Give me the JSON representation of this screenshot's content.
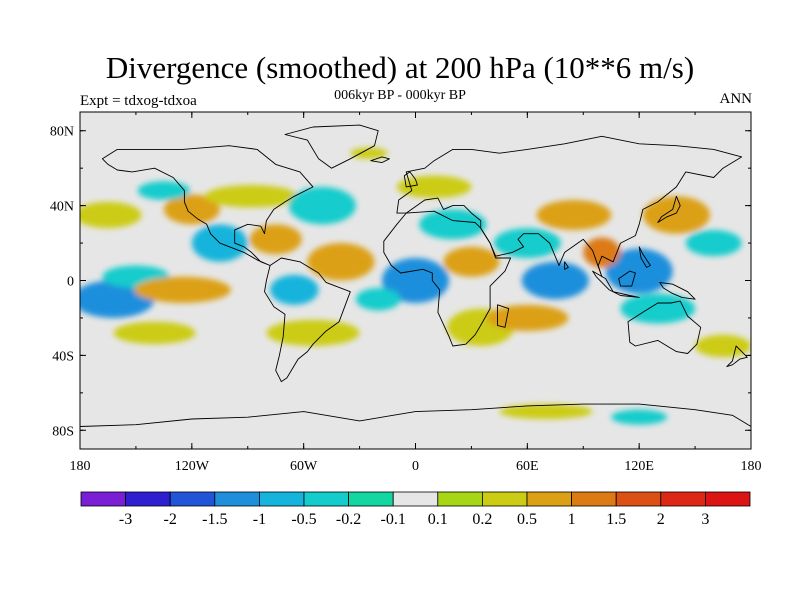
{
  "title": "Divergence (smoothed) at 200 hPa (10**6 m/s)",
  "subtitle": "006kyr BP - 000kyr BP",
  "experiment": "Expt = tdxog-tdxoa",
  "season": "ANN",
  "map": {
    "projection": "cylindrical equidistant",
    "lon_range": [
      -180,
      180
    ],
    "lat_range": [
      -90,
      90
    ],
    "background_color": "#e6e6e6",
    "lat_ticks": [
      {
        "value": 80,
        "label": "80N"
      },
      {
        "value": 40,
        "label": "40N"
      },
      {
        "value": 0,
        "label": "0"
      },
      {
        "value": -40,
        "label": "40S"
      },
      {
        "value": -80,
        "label": "80S"
      }
    ],
    "lon_ticks": [
      {
        "value": -180,
        "label": "180"
      },
      {
        "value": -120,
        "label": "120W"
      },
      {
        "value": -60,
        "label": "60W"
      },
      {
        "value": 0,
        "label": "0"
      },
      {
        "value": 60,
        "label": "60E"
      },
      {
        "value": 120,
        "label": "120E"
      },
      {
        "value": 180,
        "label": "180"
      }
    ]
  },
  "colorbar": {
    "labels": [
      "-3",
      "-2",
      "-1.5",
      "-1",
      "-0.5",
      "-0.2",
      "-0.1",
      "0.1",
      "0.2",
      "0.5",
      "1",
      "1.5",
      "2",
      "3"
    ],
    "colors": [
      "#7a1fd6",
      "#2e1fd1",
      "#1f55d6",
      "#1f8fdc",
      "#14b4dc",
      "#14cccc",
      "#14d6a0",
      "#e6e6e6",
      "#a6d614",
      "#cccc14",
      "#dca014",
      "#dc7a14",
      "#dc5014",
      "#dc2814",
      "#dc1414"
    ]
  },
  "anomalies": [
    {
      "lon": -162,
      "lat": -10,
      "rx": 22,
      "ry": 10,
      "level": 3
    },
    {
      "lon": -150,
      "lat": 2,
      "rx": 18,
      "ry": 6,
      "level": 5
    },
    {
      "lon": -125,
      "lat": -5,
      "rx": 26,
      "ry": 7,
      "level": 10
    },
    {
      "lon": -165,
      "lat": 35,
      "rx": 18,
      "ry": 7,
      "level": 9
    },
    {
      "lon": -120,
      "lat": 38,
      "rx": 15,
      "ry": 8,
      "level": 10
    },
    {
      "lon": -135,
      "lat": 48,
      "rx": 14,
      "ry": 5,
      "level": 5
    },
    {
      "lon": -105,
      "lat": 20,
      "rx": 15,
      "ry": 10,
      "level": 4
    },
    {
      "lon": -75,
      "lat": 22,
      "rx": 14,
      "ry": 8,
      "level": 10
    },
    {
      "lon": -88,
      "lat": 45,
      "rx": 25,
      "ry": 6,
      "level": 9
    },
    {
      "lon": -50,
      "lat": 40,
      "rx": 18,
      "ry": 10,
      "level": 5
    },
    {
      "lon": -40,
      "lat": 10,
      "rx": 18,
      "ry": 10,
      "level": 10
    },
    {
      "lon": -65,
      "lat": -5,
      "rx": 13,
      "ry": 8,
      "level": 4
    },
    {
      "lon": -55,
      "lat": -28,
      "rx": 25,
      "ry": 7,
      "level": 9
    },
    {
      "lon": -140,
      "lat": -28,
      "rx": 22,
      "ry": 6,
      "level": 9
    },
    {
      "lon": 0,
      "lat": 0,
      "rx": 18,
      "ry": 12,
      "level": 3
    },
    {
      "lon": -20,
      "lat": -10,
      "rx": 12,
      "ry": 6,
      "level": 5
    },
    {
      "lon": 20,
      "lat": 30,
      "rx": 18,
      "ry": 8,
      "level": 5
    },
    {
      "lon": 10,
      "lat": 50,
      "rx": 20,
      "ry": 6,
      "level": 9
    },
    {
      "lon": 30,
      "lat": 10,
      "rx": 15,
      "ry": 8,
      "level": 10
    },
    {
      "lon": 35,
      "lat": -25,
      "rx": 18,
      "ry": 10,
      "level": 9
    },
    {
      "lon": 60,
      "lat": 20,
      "rx": 18,
      "ry": 8,
      "level": 5
    },
    {
      "lon": 75,
      "lat": 0,
      "rx": 18,
      "ry": 10,
      "level": 3
    },
    {
      "lon": 85,
      "lat": 35,
      "rx": 20,
      "ry": 8,
      "level": 10
    },
    {
      "lon": 60,
      "lat": -20,
      "rx": 22,
      "ry": 7,
      "level": 10
    },
    {
      "lon": 120,
      "lat": 5,
      "rx": 18,
      "ry": 12,
      "level": 3
    },
    {
      "lon": 100,
      "lat": 15,
      "rx": 10,
      "ry": 8,
      "level": 11
    },
    {
      "lon": 140,
      "lat": 35,
      "rx": 18,
      "ry": 10,
      "level": 10
    },
    {
      "lon": 130,
      "lat": -15,
      "rx": 20,
      "ry": 8,
      "level": 5
    },
    {
      "lon": 160,
      "lat": 20,
      "rx": 15,
      "ry": 7,
      "level": 5
    },
    {
      "lon": 165,
      "lat": -35,
      "rx": 15,
      "ry": 6,
      "level": 9
    },
    {
      "lon": 70,
      "lat": -70,
      "rx": 25,
      "ry": 4,
      "level": 9
    },
    {
      "lon": 120,
      "lat": -73,
      "rx": 15,
      "ry": 4,
      "level": 5
    },
    {
      "lon": -25,
      "lat": 68,
      "rx": 10,
      "ry": 3,
      "level": 9
    }
  ],
  "land": [
    {
      "name": "north-america",
      "points": [
        [
          -168,
          65
        ],
        [
          -160,
          70
        ],
        [
          -140,
          70
        ],
        [
          -125,
          70
        ],
        [
          -100,
          72
        ],
        [
          -85,
          70
        ],
        [
          -75,
          62
        ],
        [
          -62,
          58
        ],
        [
          -55,
          50
        ],
        [
          -65,
          45
        ],
        [
          -70,
          42
        ],
        [
          -76,
          38
        ],
        [
          -80,
          32
        ],
        [
          -81,
          25
        ],
        [
          -83,
          29
        ],
        [
          -90,
          30
        ],
        [
          -97,
          27
        ],
        [
          -97,
          20
        ],
        [
          -92,
          18
        ],
        [
          -88,
          15
        ],
        [
          -83,
          10
        ],
        [
          -78,
          8
        ],
        [
          -85,
          11
        ],
        [
          -92,
          15
        ],
        [
          -105,
          20
        ],
        [
          -110,
          25
        ],
        [
          -112,
          30
        ],
        [
          -117,
          33
        ],
        [
          -122,
          37
        ],
        [
          -124,
          42
        ],
        [
          -124,
          48
        ],
        [
          -130,
          55
        ],
        [
          -140,
          60
        ],
        [
          -152,
          58
        ],
        [
          -160,
          59
        ],
        [
          -165,
          62
        ]
      ]
    },
    {
      "name": "greenland",
      "points": [
        [
          -55,
          82
        ],
        [
          -30,
          83
        ],
        [
          -20,
          80
        ],
        [
          -22,
          72
        ],
        [
          -35,
          65
        ],
        [
          -45,
          60
        ],
        [
          -52,
          65
        ],
        [
          -58,
          75
        ],
        [
          -70,
          78
        ]
      ]
    },
    {
      "name": "south-america",
      "points": [
        [
          -78,
          8
        ],
        [
          -72,
          12
        ],
        [
          -62,
          10
        ],
        [
          -52,
          4
        ],
        [
          -48,
          -1
        ],
        [
          -35,
          -6
        ],
        [
          -38,
          -14
        ],
        [
          -41,
          -22
        ],
        [
          -48,
          -27
        ],
        [
          -55,
          -34
        ],
        [
          -58,
          -38
        ],
        [
          -63,
          -42
        ],
        [
          -66,
          -47
        ],
        [
          -69,
          -52
        ],
        [
          -72,
          -54
        ],
        [
          -75,
          -48
        ],
        [
          -73,
          -40
        ],
        [
          -71,
          -30
        ],
        [
          -70,
          -18
        ],
        [
          -76,
          -14
        ],
        [
          -81,
          -6
        ],
        [
          -80,
          0
        ]
      ]
    },
    {
      "name": "europe-asia",
      "points": [
        [
          -10,
          36
        ],
        [
          -9,
          43
        ],
        [
          -2,
          48
        ],
        [
          -5,
          58
        ],
        [
          5,
          60
        ],
        [
          10,
          64
        ],
        [
          20,
          70
        ],
        [
          30,
          70
        ],
        [
          45,
          68
        ],
        [
          60,
          70
        ],
        [
          80,
          73
        ],
        [
          100,
          77
        ],
        [
          120,
          73
        ],
        [
          140,
          72
        ],
        [
          160,
          70
        ],
        [
          175,
          66
        ],
        [
          165,
          60
        ],
        [
          160,
          55
        ],
        [
          145,
          58
        ],
        [
          140,
          50
        ],
        [
          130,
          42
        ],
        [
          122,
          38
        ],
        [
          120,
          30
        ],
        [
          118,
          24
        ],
        [
          110,
          20
        ],
        [
          106,
          10
        ],
        [
          100,
          13
        ],
        [
          98,
          8
        ],
        [
          100,
          2
        ],
        [
          95,
          16
        ],
        [
          90,
          22
        ],
        [
          80,
          15
        ],
        [
          77,
          8
        ],
        [
          72,
          20
        ],
        [
          66,
          25
        ],
        [
          58,
          25
        ],
        [
          55,
          22
        ],
        [
          58,
          18
        ],
        [
          52,
          15
        ],
        [
          43,
          13
        ],
        [
          40,
          20
        ],
        [
          35,
          28
        ],
        [
          35,
          32
        ],
        [
          30,
          36
        ],
        [
          26,
          40
        ],
        [
          20,
          40
        ],
        [
          15,
          38
        ],
        [
          12,
          44
        ],
        [
          5,
          43
        ],
        [
          -5,
          36
        ]
      ]
    },
    {
      "name": "africa",
      "points": [
        [
          -17,
          21
        ],
        [
          -10,
          30
        ],
        [
          -5,
          36
        ],
        [
          10,
          37
        ],
        [
          20,
          32
        ],
        [
          32,
          31
        ],
        [
          35,
          28
        ],
        [
          40,
          20
        ],
        [
          43,
          12
        ],
        [
          51,
          12
        ],
        [
          48,
          5
        ],
        [
          40,
          -3
        ],
        [
          40,
          -15
        ],
        [
          35,
          -24
        ],
        [
          32,
          -29
        ],
        [
          27,
          -34
        ],
        [
          20,
          -35
        ],
        [
          18,
          -30
        ],
        [
          12,
          -17
        ],
        [
          13,
          -5
        ],
        [
          9,
          0
        ],
        [
          9,
          4
        ],
        [
          4,
          6
        ],
        [
          -8,
          4
        ],
        [
          -13,
          8
        ],
        [
          -17,
          15
        ]
      ]
    },
    {
      "name": "australia",
      "points": [
        [
          114,
          -22
        ],
        [
          122,
          -17
        ],
        [
          130,
          -12
        ],
        [
          137,
          -12
        ],
        [
          142,
          -11
        ],
        [
          146,
          -19
        ],
        [
          153,
          -25
        ],
        [
          151,
          -34
        ],
        [
          146,
          -39
        ],
        [
          140,
          -38
        ],
        [
          135,
          -35
        ],
        [
          130,
          -32
        ],
        [
          118,
          -35
        ],
        [
          115,
          -33
        ]
      ]
    },
    {
      "name": "antarctica",
      "points": [
        [
          -180,
          -78
        ],
        [
          -150,
          -77
        ],
        [
          -120,
          -74
        ],
        [
          -90,
          -73
        ],
        [
          -60,
          -70
        ],
        [
          -30,
          -75
        ],
        [
          0,
          -70
        ],
        [
          30,
          -69
        ],
        [
          60,
          -67
        ],
        [
          90,
          -66
        ],
        [
          120,
          -66
        ],
        [
          150,
          -69
        ],
        [
          170,
          -72
        ],
        [
          180,
          -78
        ],
        [
          180,
          -90
        ],
        [
          -180,
          -90
        ]
      ]
    },
    {
      "name": "madagascar",
      "points": [
        [
          44,
          -13
        ],
        [
          50,
          -15
        ],
        [
          48,
          -25
        ],
        [
          44,
          -24
        ]
      ]
    },
    {
      "name": "japan",
      "points": [
        [
          130,
          31
        ],
        [
          135,
          34
        ],
        [
          140,
          36
        ],
        [
          142,
          40
        ],
        [
          140,
          45
        ],
        [
          138,
          38
        ],
        [
          132,
          34
        ]
      ]
    },
    {
      "name": "indonesia",
      "points": [
        [
          95,
          5
        ],
        [
          102,
          1
        ],
        [
          106,
          -6
        ],
        [
          115,
          -8
        ],
        [
          120,
          -9
        ],
        [
          110,
          -8
        ],
        [
          104,
          -5
        ],
        [
          97,
          2
        ]
      ]
    },
    {
      "name": "borneo",
      "points": [
        [
          109,
          1
        ],
        [
          115,
          5
        ],
        [
          118,
          4
        ],
        [
          116,
          -3
        ],
        [
          110,
          -3
        ]
      ]
    },
    {
      "name": "new-guinea",
      "points": [
        [
          131,
          -1
        ],
        [
          138,
          -2
        ],
        [
          146,
          -6
        ],
        [
          150,
          -10
        ],
        [
          143,
          -9
        ],
        [
          138,
          -7
        ],
        [
          133,
          -4
        ]
      ]
    },
    {
      "name": "new-zealand",
      "points": [
        [
          172,
          -35
        ],
        [
          175,
          -38
        ],
        [
          178,
          -41
        ],
        [
          174,
          -42
        ],
        [
          170,
          -45
        ],
        [
          167,
          -46
        ],
        [
          170,
          -43
        ]
      ]
    },
    {
      "name": "britain",
      "points": [
        [
          -5,
          50
        ],
        [
          1,
          51
        ],
        [
          0,
          54
        ],
        [
          -3,
          58
        ],
        [
          -6,
          56
        ]
      ]
    },
    {
      "name": "iceland",
      "points": [
        [
          -24,
          64
        ],
        [
          -18,
          66
        ],
        [
          -14,
          65
        ],
        [
          -18,
          63
        ]
      ]
    },
    {
      "name": "sri-lanka",
      "points": [
        [
          80,
          10
        ],
        [
          82,
          7
        ],
        [
          80,
          6
        ]
      ]
    },
    {
      "name": "philippines",
      "points": [
        [
          120,
          18
        ],
        [
          122,
          14
        ],
        [
          126,
          8
        ],
        [
          124,
          7
        ],
        [
          121,
          12
        ]
      ]
    }
  ]
}
